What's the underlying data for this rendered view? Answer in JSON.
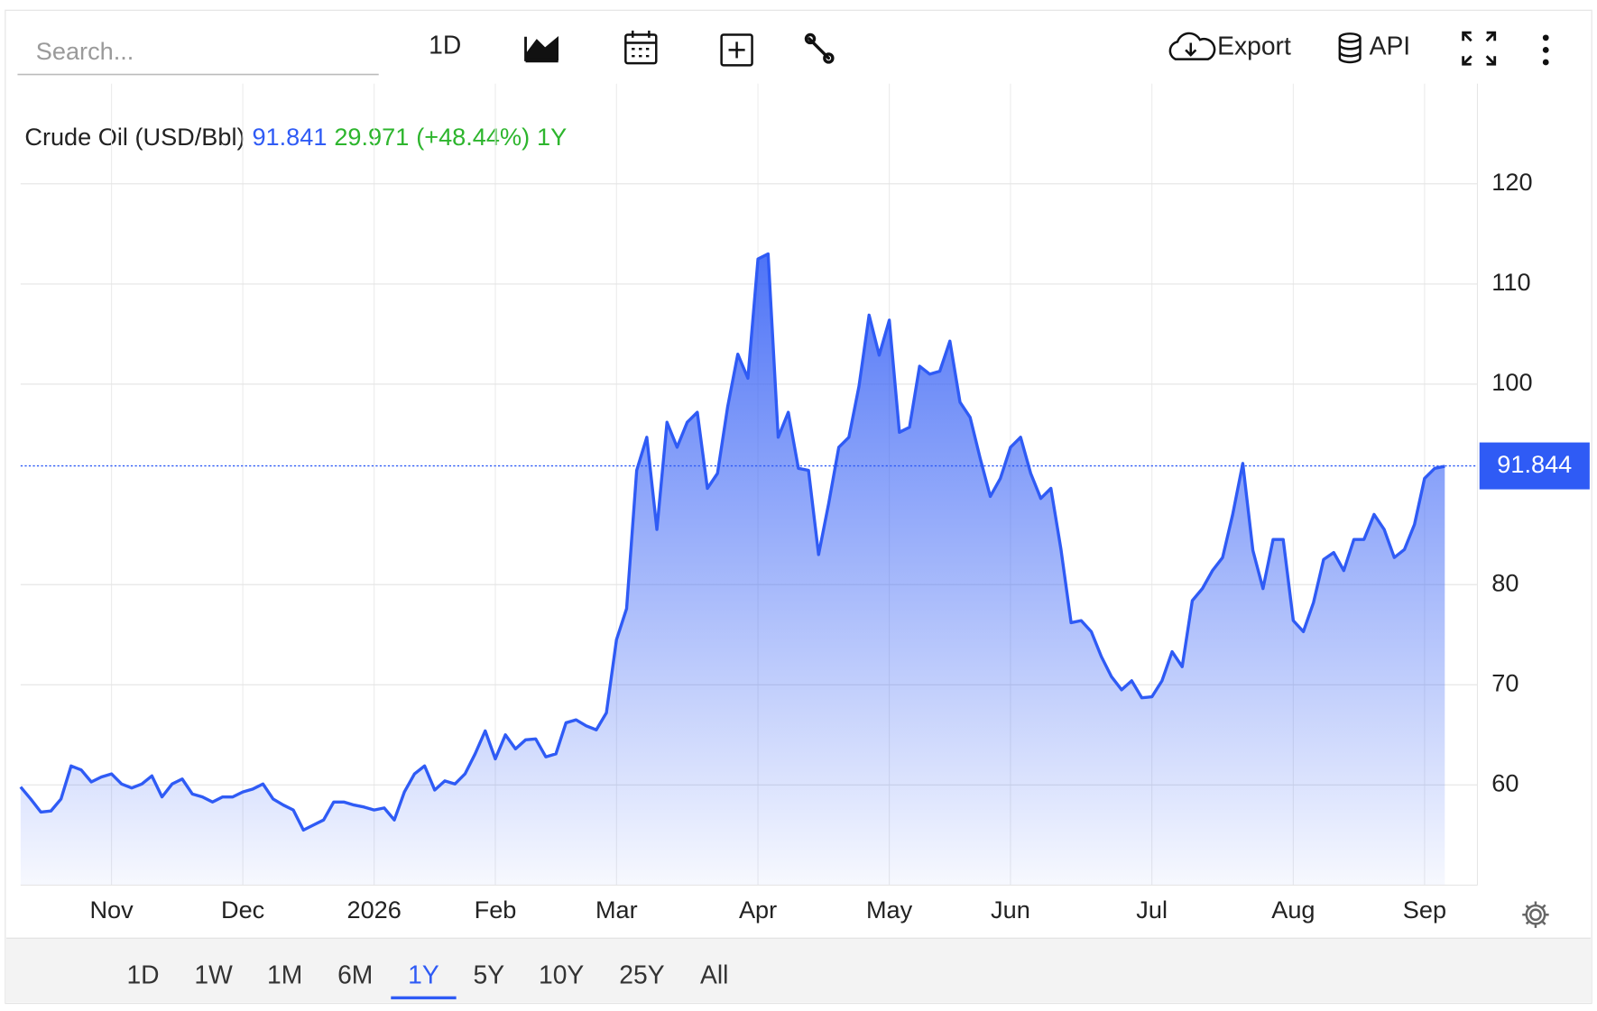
{
  "toolbar": {
    "search_placeholder": "Search...",
    "interval": "1D",
    "export": "Export",
    "api": "API"
  },
  "header": {
    "title": "Crude Oil (USD/Bbl)",
    "price": "91.841",
    "change": "29.971",
    "change_pct": "(+48.44%)",
    "period": "1Y"
  },
  "ranges": {
    "options": [
      "1D",
      "1W",
      "1M",
      "6M",
      "1Y",
      "5Y",
      "10Y",
      "25Y",
      "All"
    ],
    "active": 4
  },
  "chart_data": {
    "type": "area",
    "color": "#2f5bf5",
    "categories": [
      null,
      null,
      null,
      null,
      null,
      null,
      null,
      null,
      null,
      "Nov",
      null,
      null,
      null,
      null,
      null,
      null,
      null,
      null,
      null,
      null,
      null,
      null,
      "Dec",
      null,
      null,
      null,
      null,
      null,
      null,
      null,
      null,
      null,
      null,
      null,
      null,
      "2026",
      null,
      null,
      null,
      null,
      null,
      null,
      null,
      null,
      null,
      null,
      null,
      "Feb",
      null,
      null,
      null,
      null,
      null,
      null,
      null,
      null,
      null,
      null,
      null,
      "Mar",
      null,
      null,
      null,
      null,
      null,
      null,
      null,
      null,
      null,
      null,
      null,
      null,
      null,
      "Apr",
      null,
      null,
      null,
      null,
      null,
      null,
      null,
      null,
      null,
      null,
      null,
      null,
      "May",
      null,
      null,
      null,
      null,
      null,
      null,
      null,
      null,
      null,
      null,
      null,
      "Jun",
      null,
      null,
      null,
      null,
      null,
      null,
      null,
      null,
      null,
      null,
      null,
      null,
      null,
      "Jul",
      null,
      null,
      null,
      null,
      null,
      null,
      null,
      null,
      null,
      null,
      null,
      null,
      null,
      "Aug",
      null,
      null,
      null,
      null,
      null,
      null,
      null,
      null,
      null,
      null,
      null,
      null,
      "Sep",
      null,
      null
    ],
    "values": [
      59.8,
      58.6,
      57.3,
      57.4,
      58.6,
      61.9,
      61.5,
      60.3,
      60.8,
      61.1,
      60.1,
      59.7,
      60.1,
      60.9,
      58.8,
      60.1,
      60.6,
      59.1,
      58.8,
      58.3,
      58.8,
      58.8,
      59.3,
      59.6,
      60.1,
      58.6,
      58.0,
      57.5,
      55.5,
      56.0,
      56.5,
      58.3,
      58.3,
      58.0,
      57.8,
      57.5,
      57.7,
      56.5,
      59.3,
      61.1,
      61.9,
      59.5,
      60.4,
      60.1,
      61.1,
      63.1,
      65.4,
      62.6,
      65.0,
      63.6,
      64.5,
      64.6,
      62.8,
      63.1,
      66.2,
      66.5,
      65.9,
      65.5,
      67.2,
      74.5,
      77.6,
      91.4,
      94.7,
      85.5,
      96.2,
      93.7,
      96.2,
      97.2,
      89.6,
      91.1,
      97.7,
      103.0,
      100.6,
      112.5,
      113.0,
      94.7,
      97.2,
      91.6,
      91.4,
      83.0,
      88.1,
      93.7,
      94.7,
      99.8,
      106.9,
      102.9,
      106.4,
      95.2,
      95.7,
      101.8,
      101.0,
      101.3,
      104.3,
      98.2,
      96.7,
      92.6,
      88.8,
      90.6,
      93.7,
      94.7,
      91.1,
      88.6,
      89.6,
      83.5,
      76.2,
      76.4,
      75.3,
      72.8,
      70.8,
      69.5,
      70.4,
      68.7,
      68.8,
      70.4,
      73.3,
      71.8,
      78.4,
      79.6,
      81.4,
      82.7,
      87.0,
      92.1,
      83.4,
      79.6,
      84.5,
      84.5,
      76.4,
      75.3,
      78.2,
      82.5,
      83.2,
      81.4,
      84.5,
      84.5,
      87.0,
      85.5,
      82.7,
      83.5,
      86.0,
      90.6,
      91.6,
      91.8
    ],
    "last_price": 91.844,
    "ylim": [
      50,
      130
    ],
    "yticks": [
      60,
      70,
      80,
      100,
      110,
      120
    ],
    "grid": true
  }
}
